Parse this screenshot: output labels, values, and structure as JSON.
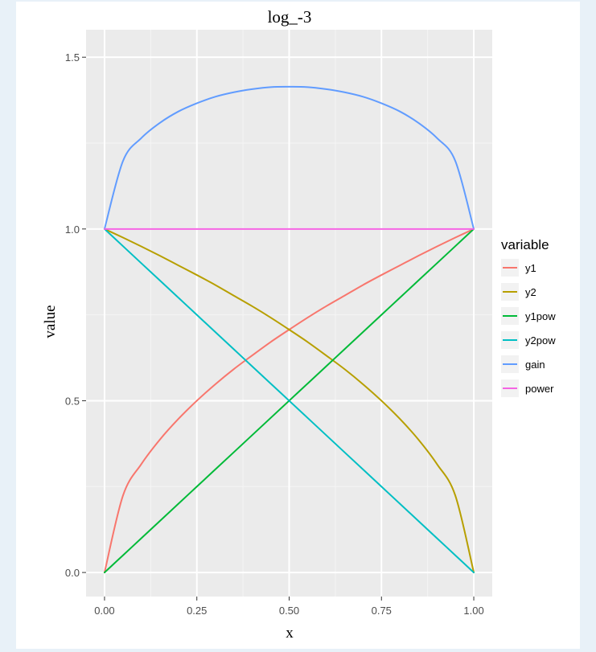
{
  "chart_data": {
    "type": "line",
    "title": "log_-3",
    "xlabel": "x",
    "ylabel": "value",
    "xlim": [
      -0.05,
      1.05
    ],
    "ylim": [
      -0.07,
      1.58
    ],
    "x_ticks": [
      0,
      0.25,
      0.5,
      0.75,
      1
    ],
    "x_tick_labels": [
      "0.00",
      "0.25",
      "0.50",
      "0.75",
      "1.00"
    ],
    "y_ticks": [
      0,
      0.5,
      1,
      1.5
    ],
    "y_tick_labels": [
      "0.0",
      "0.5",
      "1.0",
      "1.5"
    ],
    "grid": true,
    "legend_title": "variable",
    "legend_position": "right",
    "x": [
      0,
      0.05,
      0.1,
      0.15,
      0.2,
      0.25,
      0.3,
      0.35,
      0.4,
      0.45,
      0.5,
      0.55,
      0.6,
      0.65,
      0.7,
      0.75,
      0.8,
      0.85,
      0.9,
      0.95,
      1
    ],
    "series": [
      {
        "name": "y1",
        "color": "#F8766D",
        "values": [
          0,
          0.224,
          0.316,
          0.387,
          0.447,
          0.5,
          0.548,
          0.592,
          0.632,
          0.671,
          0.707,
          0.742,
          0.775,
          0.806,
          0.837,
          0.866,
          0.894,
          0.922,
          0.949,
          0.975,
          1
        ]
      },
      {
        "name": "y2",
        "color": "#B79F00",
        "values": [
          1,
          0.975,
          0.949,
          0.922,
          0.894,
          0.866,
          0.837,
          0.806,
          0.775,
          0.742,
          0.707,
          0.671,
          0.632,
          0.592,
          0.548,
          0.5,
          0.447,
          0.387,
          0.316,
          0.224,
          0
        ]
      },
      {
        "name": "y1pow",
        "color": "#00BA38",
        "values": [
          0,
          0.05,
          0.1,
          0.15,
          0.2,
          0.25,
          0.3,
          0.35,
          0.4,
          0.45,
          0.5,
          0.55,
          0.6,
          0.65,
          0.7,
          0.75,
          0.8,
          0.85,
          0.9,
          0.95,
          1
        ]
      },
      {
        "name": "y2pow",
        "color": "#00BFC4",
        "values": [
          1,
          0.95,
          0.9,
          0.85,
          0.8,
          0.75,
          0.7,
          0.65,
          0.6,
          0.55,
          0.5,
          0.45,
          0.4,
          0.35,
          0.3,
          0.25,
          0.2,
          0.15,
          0.1,
          0.05,
          0
        ]
      },
      {
        "name": "gain",
        "color": "#619CFF",
        "values": [
          1,
          1.198,
          1.265,
          1.309,
          1.342,
          1.366,
          1.385,
          1.398,
          1.407,
          1.413,
          1.414,
          1.413,
          1.407,
          1.398,
          1.385,
          1.366,
          1.342,
          1.309,
          1.265,
          1.198,
          1
        ]
      },
      {
        "name": "power",
        "color": "#F564E3",
        "values": [
          1,
          1,
          1,
          1,
          1,
          1,
          1,
          1,
          1,
          1,
          1,
          1,
          1,
          1,
          1,
          1,
          1,
          1,
          1,
          1,
          1
        ]
      }
    ]
  }
}
